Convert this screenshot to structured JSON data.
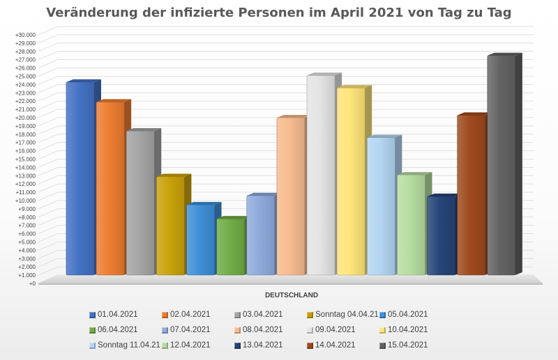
{
  "chart_data": {
    "type": "bar",
    "title": "Veränderung der infizierte Personen im April 2021 von Tag zu Tag",
    "categories": [
      "DEUTSCHLAND"
    ],
    "ylim": [
      0,
      30000
    ],
    "y_tick_step": 1000,
    "y_tick_labels": [
      "+0",
      "+1.000",
      "+2.000",
      "+3.000",
      "+4.000",
      "+5.000",
      "+6.000",
      "+7.000",
      "+8.000",
      "+9.000",
      "+10.000",
      "+11.000",
      "+12.000",
      "+13.000",
      "+14.000",
      "+15.000",
      "+16.000",
      "+17.000",
      "+18.000",
      "+19.000",
      "+20.000",
      "+21.000",
      "+22.000",
      "+23.000",
      "+24.000",
      "+25.000",
      "+26.000",
      "+27.000",
      "+28.000",
      "+29.000",
      "+30.000"
    ],
    "grid": true,
    "legend_position": "bottom",
    "series": [
      {
        "name": "01.04.2021",
        "values": [
          24300
        ],
        "color": "#4472C4"
      },
      {
        "name": "02.04.2021",
        "values": [
          21900
        ],
        "color": "#ED7D31"
      },
      {
        "name": "03.04.2021",
        "values": [
          18400
        ],
        "color": "#A5A5A5"
      },
      {
        "name": "Sonntag 04.04.21",
        "values": [
          12900
        ],
        "color": "#C9A20B"
      },
      {
        "name": "05.04.2021",
        "values": [
          9500
        ],
        "color": "#3F8FD8"
      },
      {
        "name": "06.04.2021",
        "values": [
          7800
        ],
        "color": "#70AD47"
      },
      {
        "name": "07.04.2021",
        "values": [
          10600
        ],
        "color": "#8FAADC"
      },
      {
        "name": "08.04.2021",
        "values": [
          20000
        ],
        "color": "#F8BB8F"
      },
      {
        "name": "09.04.2021",
        "values": [
          25100
        ],
        "color": "#E4E4E4"
      },
      {
        "name": "10.04.2021",
        "values": [
          23600
        ],
        "color": "#FFE57A"
      },
      {
        "name": "Sonntag 11.04.21",
        "values": [
          17600
        ],
        "color": "#B4D6F4"
      },
      {
        "name": "12.04.2021",
        "values": [
          13100
        ],
        "color": "#B7DDA2"
      },
      {
        "name": "13.04.2021",
        "values": [
          10500
        ],
        "color": "#264478"
      },
      {
        "name": "14.04.2021",
        "values": [
          20300
        ],
        "color": "#9E4A1C"
      },
      {
        "name": "15.04.2021",
        "values": [
          27500
        ],
        "color": "#636363"
      }
    ]
  }
}
